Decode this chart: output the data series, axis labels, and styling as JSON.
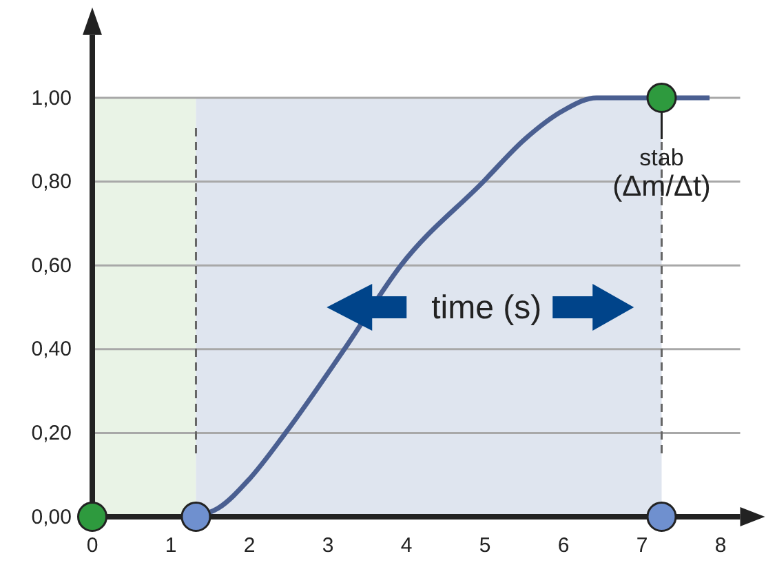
{
  "chart_data": {
    "type": "line",
    "xlabel": "time (s)",
    "xlim": [
      0,
      8.25
    ],
    "xticks": [
      0,
      1,
      2,
      3,
      4,
      5,
      6,
      7,
      8
    ],
    "ylim": [
      0,
      1.15
    ],
    "yticks": [
      {
        "value": 0,
        "label": "0,00"
      },
      {
        "value": 0.2,
        "label": "0,20"
      },
      {
        "value": 0.4,
        "label": "0,40"
      },
      {
        "value": 0.6,
        "label": "0,60"
      },
      {
        "value": 0.8,
        "label": "0,80"
      },
      {
        "value": 1,
        "label": "1,00"
      }
    ],
    "grid": "y",
    "line_style": "solid",
    "marker": "circle",
    "series": [
      {
        "color": "#4a5f91",
        "marker": "none",
        "x": [
          1.32,
          1.6,
          2.0,
          2.46,
          3.21,
          3.93,
          4.98,
          5.5,
          6.0,
          6.42,
          7.86
        ],
        "values": [
          0,
          0.02,
          0.09,
          0.2,
          0.4,
          0.6,
          0.8,
          0.9,
          0.97,
          1.0,
          1.0
        ]
      },
      {
        "type": "scatter",
        "x": [
          0,
          1.32,
          7.25,
          7.25
        ],
        "values": [
          0,
          0,
          0,
          1
        ],
        "colors": [
          "#2e9a3e",
          "#6f90cf",
          "#6f90cf",
          "#2e9a3e"
        ]
      }
    ],
    "bands": [
      {
        "axis": "x",
        "from": 0,
        "to": 1.32,
        "color": "#e9f3e6"
      },
      {
        "axis": "x",
        "from": 1.32,
        "to": 7.25,
        "color": "#dfe5ef"
      }
    ],
    "ref_lines": [
      {
        "axis": "x",
        "value": 1.32,
        "line_style": "dashed"
      },
      {
        "axis": "x",
        "value": 7.25,
        "line_style": "dashed"
      }
    ],
    "annotations": [
      {
        "text": "stab (Δm/Δt)",
        "x": 7.25,
        "y": 1
      }
    ]
  }
}
